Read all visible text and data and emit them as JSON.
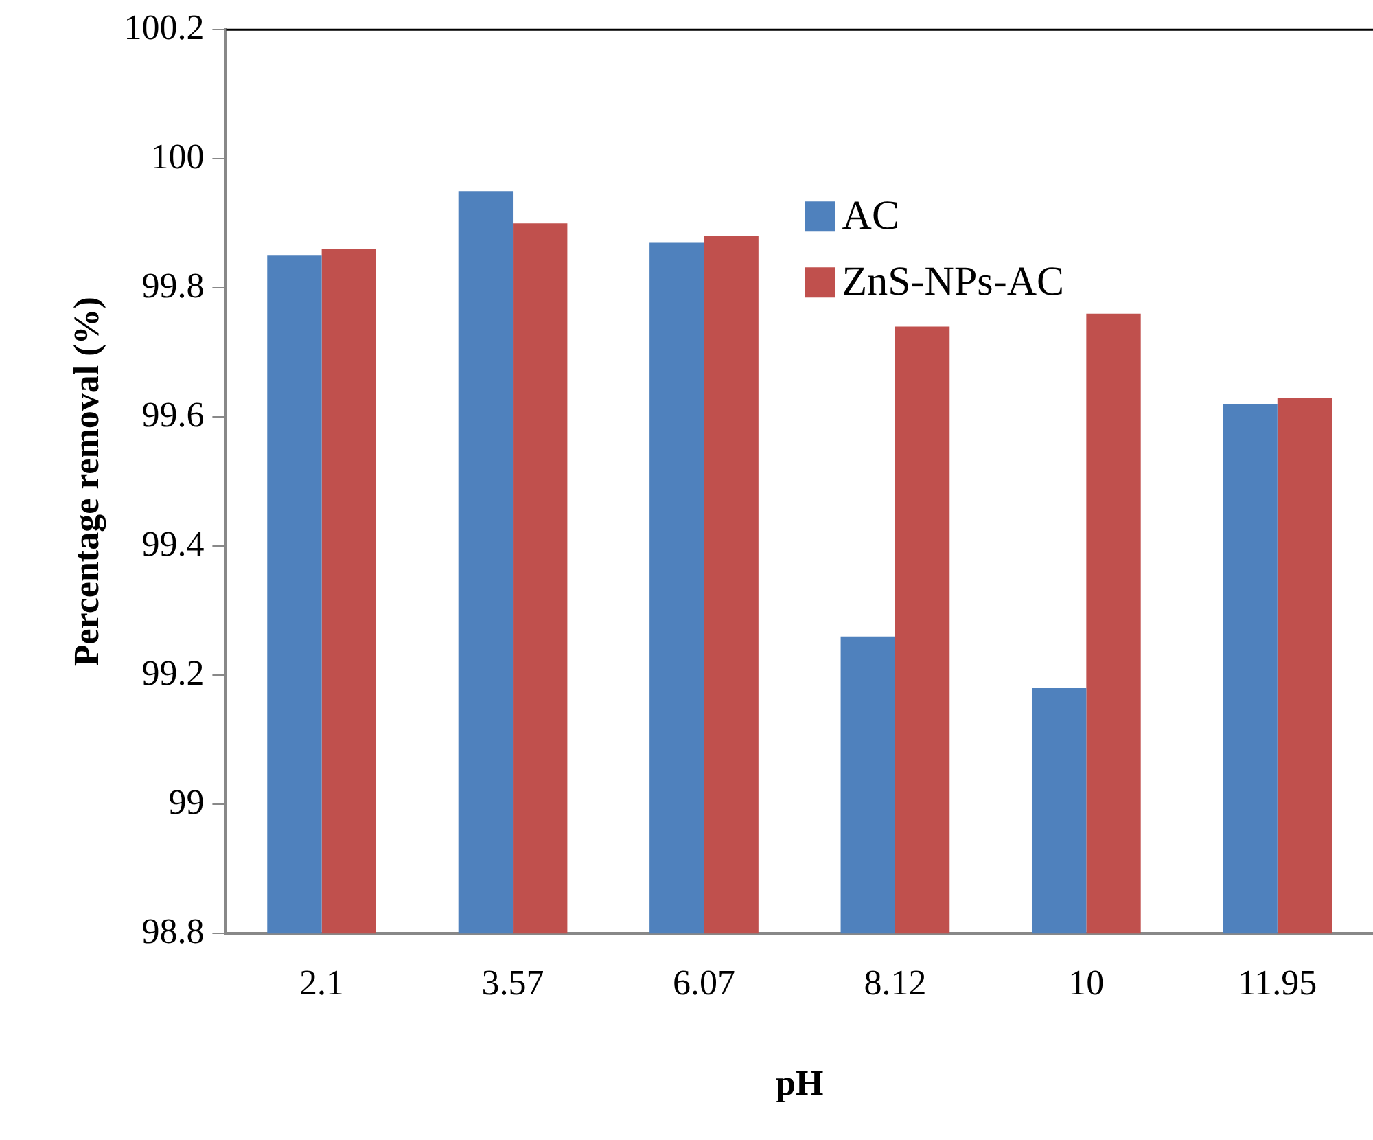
{
  "chart_data": {
    "type": "bar",
    "xlabel": "pH",
    "ylabel": "Percentage removal (%)",
    "categories": [
      "2.1",
      "3.57",
      "6.07",
      "8.12",
      "10",
      "11.95"
    ],
    "series": [
      {
        "name": "AC",
        "color": "#4f81bd",
        "values": [
          99.85,
          99.95,
          99.87,
          99.26,
          99.18,
          99.62
        ]
      },
      {
        "name": "ZnS-NPs-AC",
        "color": "#c0504d",
        "values": [
          99.86,
          99.9,
          99.88,
          99.74,
          99.76,
          99.63
        ]
      }
    ],
    "ylim": [
      98.8,
      100.2
    ],
    "yticks": [
      98.8,
      99,
      99.2,
      99.4,
      99.6,
      99.8,
      100,
      100.2
    ],
    "grid": false,
    "legend": "top right"
  }
}
